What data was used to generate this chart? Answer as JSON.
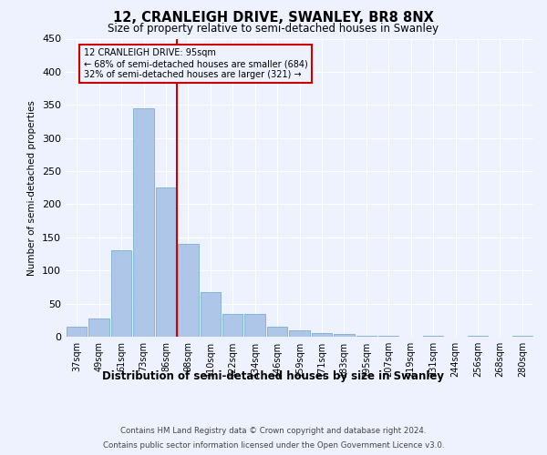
{
  "title": "12, CRANLEIGH DRIVE, SWANLEY, BR8 8NX",
  "subtitle": "Size of property relative to semi-detached houses in Swanley",
  "xlabel": "Distribution of semi-detached houses by size in Swanley",
  "ylabel": "Number of semi-detached properties",
  "bin_labels": [
    "37sqm",
    "49sqm",
    "61sqm",
    "73sqm",
    "86sqm",
    "98sqm",
    "110sqm",
    "122sqm",
    "134sqm",
    "146sqm",
    "159sqm",
    "171sqm",
    "183sqm",
    "195sqm",
    "207sqm",
    "219sqm",
    "231sqm",
    "244sqm",
    "256sqm",
    "268sqm",
    "280sqm"
  ],
  "bar_heights": [
    15,
    28,
    130,
    345,
    226,
    140,
    68,
    35,
    35,
    15,
    9,
    5,
    4,
    1,
    1,
    0,
    1,
    0,
    1,
    0,
    1
  ],
  "bar_color": "#aec6e8",
  "bar_edge_color": "#7aafd4",
  "marker_line_color": "#cc0000",
  "annotation_box_edge_color": "#cc0000",
  "marker_label_lines": [
    "12 CRANLEIGH DRIVE: 95sqm",
    "← 68% of semi-detached houses are smaller (684)",
    "32% of semi-detached houses are larger (321) →"
  ],
  "ylim": [
    0,
    450
  ],
  "yticks": [
    0,
    50,
    100,
    150,
    200,
    250,
    300,
    350,
    400,
    450
  ],
  "background_color": "#eef2ff",
  "grid_color": "#ffffff",
  "footnote_line1": "Contains HM Land Registry data © Crown copyright and database right 2024.",
  "footnote_line2": "Contains public sector information licensed under the Open Government Licence v3.0."
}
